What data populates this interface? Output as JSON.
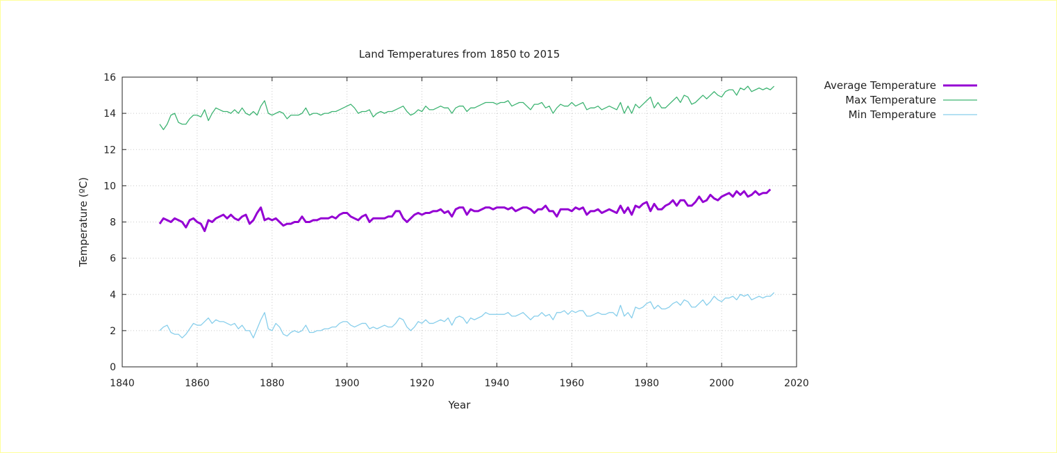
{
  "chart_data": {
    "type": "line",
    "title": "Land Temperatures from 1850 to 2015",
    "xlabel": "Year",
    "ylabel": "Temperature (ºC)",
    "xlim": [
      1840,
      2020
    ],
    "ylim": [
      0,
      16
    ],
    "xticks": [
      1840,
      1860,
      1880,
      1900,
      1920,
      1940,
      1960,
      1980,
      2000,
      2020
    ],
    "yticks": [
      0,
      2,
      4,
      6,
      8,
      10,
      12,
      14,
      16
    ],
    "grid": true,
    "legend_position": "outside-top-right",
    "x_start": 1850,
    "series": [
      {
        "name": "Average Temperature",
        "color": "#9400d3",
        "values": [
          7.9,
          8.2,
          8.1,
          8.0,
          8.2,
          8.1,
          8.0,
          7.7,
          8.1,
          8.2,
          8.0,
          7.9,
          7.5,
          8.1,
          8.0,
          8.2,
          8.3,
          8.4,
          8.2,
          8.4,
          8.2,
          8.1,
          8.3,
          8.4,
          7.9,
          8.1,
          8.5,
          8.8,
          8.1,
          8.2,
          8.1,
          8.2,
          8.0,
          7.8,
          7.9,
          7.9,
          8.0,
          8.0,
          8.3,
          8.0,
          8.0,
          8.1,
          8.1,
          8.2,
          8.2,
          8.2,
          8.3,
          8.2,
          8.4,
          8.5,
          8.5,
          8.3,
          8.2,
          8.1,
          8.3,
          8.4,
          8.0,
          8.2,
          8.2,
          8.2,
          8.2,
          8.3,
          8.3,
          8.6,
          8.6,
          8.2,
          8.0,
          8.2,
          8.4,
          8.5,
          8.4,
          8.5,
          8.5,
          8.6,
          8.6,
          8.7,
          8.5,
          8.6,
          8.3,
          8.7,
          8.8,
          8.8,
          8.4,
          8.7,
          8.6,
          8.6,
          8.7,
          8.8,
          8.8,
          8.7,
          8.8,
          8.8,
          8.8,
          8.7,
          8.8,
          8.6,
          8.7,
          8.8,
          8.8,
          8.7,
          8.5,
          8.7,
          8.7,
          8.9,
          8.6,
          8.6,
          8.3,
          8.7,
          8.7,
          8.7,
          8.6,
          8.8,
          8.7,
          8.8,
          8.4,
          8.6,
          8.6,
          8.7,
          8.5,
          8.6,
          8.7,
          8.6,
          8.5,
          8.9,
          8.5,
          8.8,
          8.4,
          8.9,
          8.8,
          9.0,
          9.1,
          8.6,
          9.0,
          8.7,
          8.7,
          8.9,
          9.0,
          9.2,
          8.9,
          9.2,
          9.2,
          8.9,
          8.9,
          9.1,
          9.4,
          9.1,
          9.2,
          9.5,
          9.3,
          9.2,
          9.4,
          9.5,
          9.6,
          9.4,
          9.7,
          9.5,
          9.7,
          9.4,
          9.5,
          9.7,
          9.5,
          9.6,
          9.6,
          9.8
        ]
      },
      {
        "name": "Max Temperature",
        "color": "#3cb371",
        "values": [
          13.4,
          13.1,
          13.4,
          13.9,
          14.0,
          13.5,
          13.4,
          13.4,
          13.7,
          13.9,
          13.9,
          13.8,
          14.2,
          13.6,
          14.0,
          14.3,
          14.2,
          14.1,
          14.1,
          14.0,
          14.2,
          14.0,
          14.3,
          14.0,
          13.9,
          14.1,
          13.9,
          14.4,
          14.7,
          14.0,
          13.9,
          14.0,
          14.1,
          14.0,
          13.7,
          13.9,
          13.9,
          13.9,
          14.0,
          14.3,
          13.9,
          14.0,
          14.0,
          13.9,
          14.0,
          14.0,
          14.1,
          14.1,
          14.2,
          14.3,
          14.4,
          14.5,
          14.3,
          14.0,
          14.1,
          14.1,
          14.2,
          13.8,
          14.0,
          14.1,
          14.0,
          14.1,
          14.1,
          14.2,
          14.3,
          14.4,
          14.1,
          13.9,
          14.0,
          14.2,
          14.1,
          14.4,
          14.2,
          14.2,
          14.3,
          14.4,
          14.3,
          14.3,
          14.0,
          14.3,
          14.4,
          14.4,
          14.1,
          14.3,
          14.3,
          14.4,
          14.5,
          14.6,
          14.6,
          14.6,
          14.5,
          14.6,
          14.6,
          14.7,
          14.4,
          14.5,
          14.6,
          14.6,
          14.4,
          14.2,
          14.5,
          14.5,
          14.6,
          14.3,
          14.4,
          14.0,
          14.3,
          14.5,
          14.4,
          14.4,
          14.6,
          14.4,
          14.5,
          14.6,
          14.2,
          14.3,
          14.3,
          14.4,
          14.2,
          14.3,
          14.4,
          14.3,
          14.2,
          14.6,
          14.0,
          14.4,
          14.0,
          14.5,
          14.3,
          14.5,
          14.7,
          14.9,
          14.3,
          14.6,
          14.3,
          14.3,
          14.5,
          14.7,
          14.9,
          14.6,
          15.0,
          14.9,
          14.5,
          14.6,
          14.8,
          15.0,
          14.8,
          15.0,
          15.2,
          15.0,
          14.9,
          15.2,
          15.3,
          15.3,
          15.0,
          15.4,
          15.3,
          15.5,
          15.2,
          15.3,
          15.4,
          15.3,
          15.4,
          15.3,
          15.5
        ]
      },
      {
        "name": "Min Temperature",
        "color": "#87ceeb",
        "values": [
          2.0,
          2.2,
          2.3,
          1.9,
          1.8,
          1.8,
          1.6,
          1.8,
          2.1,
          2.4,
          2.3,
          2.3,
          2.5,
          2.7,
          2.4,
          2.6,
          2.5,
          2.5,
          2.4,
          2.3,
          2.4,
          2.1,
          2.3,
          2.0,
          2.0,
          1.6,
          2.1,
          2.6,
          3.0,
          2.1,
          2.0,
          2.4,
          2.2,
          1.8,
          1.7,
          1.9,
          2.0,
          1.9,
          2.0,
          2.3,
          1.9,
          1.9,
          2.0,
          2.0,
          2.1,
          2.1,
          2.2,
          2.2,
          2.4,
          2.5,
          2.5,
          2.3,
          2.2,
          2.3,
          2.4,
          2.4,
          2.1,
          2.2,
          2.1,
          2.2,
          2.3,
          2.2,
          2.2,
          2.4,
          2.7,
          2.6,
          2.2,
          2.0,
          2.2,
          2.5,
          2.4,
          2.6,
          2.4,
          2.4,
          2.5,
          2.6,
          2.5,
          2.7,
          2.3,
          2.7,
          2.8,
          2.7,
          2.4,
          2.7,
          2.6,
          2.7,
          2.8,
          3.0,
          2.9,
          2.9,
          2.9,
          2.9,
          2.9,
          3.0,
          2.8,
          2.8,
          2.9,
          3.0,
          2.8,
          2.6,
          2.8,
          2.8,
          3.0,
          2.8,
          2.9,
          2.6,
          3.0,
          3.0,
          3.1,
          2.9,
          3.1,
          3.0,
          3.1,
          3.1,
          2.8,
          2.8,
          2.9,
          3.0,
          2.9,
          2.9,
          3.0,
          3.0,
          2.8,
          3.4,
          2.8,
          3.0,
          2.7,
          3.3,
          3.2,
          3.3,
          3.5,
          3.6,
          3.2,
          3.4,
          3.2,
          3.2,
          3.3,
          3.5,
          3.6,
          3.4,
          3.7,
          3.6,
          3.3,
          3.3,
          3.5,
          3.7,
          3.4,
          3.6,
          3.9,
          3.7,
          3.6,
          3.8,
          3.8,
          3.9,
          3.7,
          4.0,
          3.9,
          4.0,
          3.7,
          3.8,
          3.9,
          3.8,
          3.9,
          3.9,
          4.1
        ]
      }
    ]
  }
}
